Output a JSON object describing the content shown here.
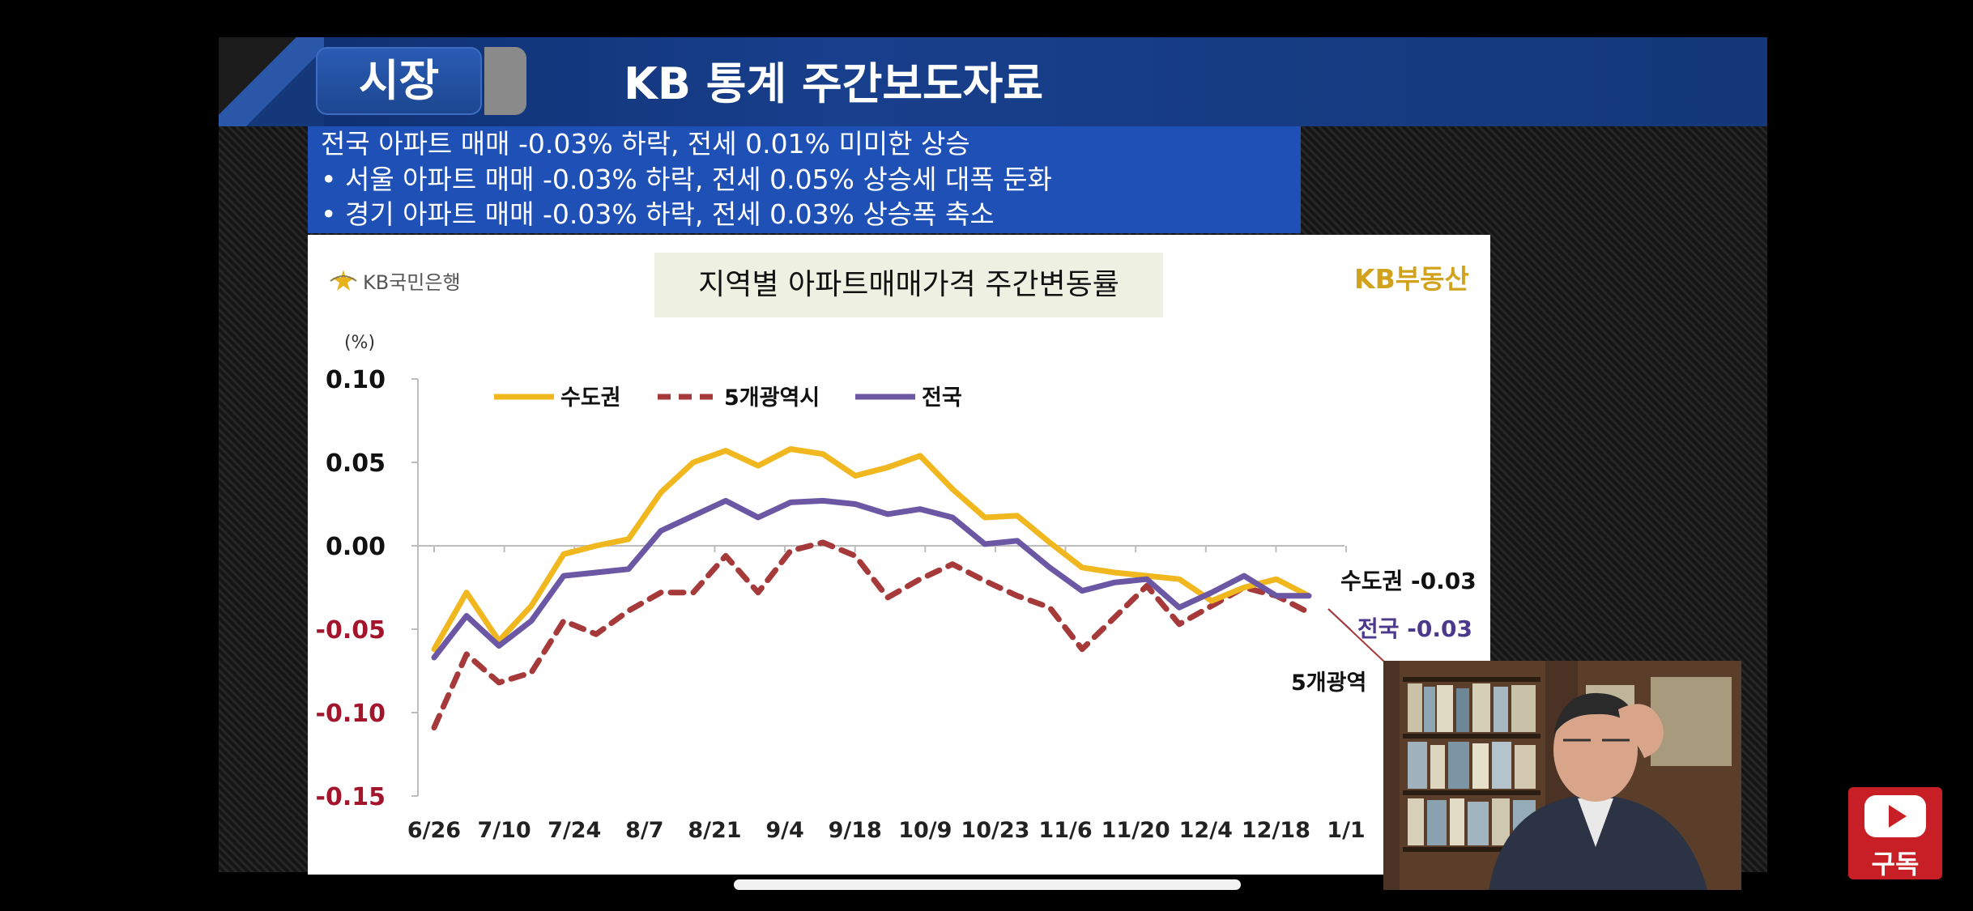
{
  "header": {
    "tab_label": "시장",
    "title": "KB 통계  주간보도자료"
  },
  "summary": {
    "lines": [
      "전국 아파트 매매 -0.03% 하락, 전세 0.01% 미미한 상승",
      "• 서울 아파트 매매 -0.03% 하락, 전세 0.05% 상승세 대폭 둔화",
      "• 경기 아파트 매매 -0.03% 하락, 전세 0.03% 상승폭 축소"
    ]
  },
  "logos": {
    "left_text": "KB국민은행",
    "left_icon": "kb-star-icon",
    "right_text": "KB부동산"
  },
  "subscribe": {
    "label": "구독",
    "icon": "youtube-play-icon"
  },
  "colors": {
    "capital": "#f0b71e",
    "metro5": "#a63a3a",
    "national": "#6b57a3",
    "header_blue": "#143879",
    "summary_blue": "#1f50b5"
  },
  "chart_data": {
    "type": "line",
    "title": "지역별 아파트매매가격 주간변동률",
    "unit_label": "(%)",
    "ylim": [
      -0.15,
      0.1
    ],
    "yticks": [
      "0.10",
      "0.05",
      "0.00",
      "-0.05",
      "-0.10",
      "-0.15"
    ],
    "x_tick_labels": [
      "6/26",
      "7/10",
      "7/24",
      "8/7",
      "8/21",
      "9/4",
      "9/18",
      "10/9",
      "10/23",
      "11/6",
      "11/20",
      "12/4",
      "12/18",
      "1/1"
    ],
    "legend": {
      "position": "top-left"
    },
    "series": [
      {
        "name": "수도권",
        "color": "#f0b71e",
        "style": "solid",
        "values": [
          -0.062,
          -0.028,
          -0.057,
          -0.036,
          -0.005,
          0.0,
          0.004,
          0.032,
          0.05,
          0.057,
          0.048,
          0.058,
          0.055,
          0.042,
          0.047,
          0.054,
          0.034,
          0.017,
          0.018,
          0.002,
          -0.013,
          -0.016,
          -0.018,
          -0.02,
          -0.033,
          -0.025,
          -0.02,
          -0.03
        ]
      },
      {
        "name": "5개광역시",
        "color": "#a63a3a",
        "style": "dashed",
        "values": [
          -0.109,
          -0.065,
          -0.082,
          -0.076,
          -0.045,
          -0.053,
          -0.039,
          -0.028,
          -0.028,
          -0.006,
          -0.028,
          -0.003,
          0.002,
          -0.006,
          -0.031,
          -0.02,
          -0.011,
          -0.021,
          -0.03,
          -0.037,
          -0.062,
          -0.043,
          -0.024,
          -0.047,
          -0.036,
          -0.025,
          -0.03,
          -0.04
        ]
      },
      {
        "name": "전국",
        "color": "#6b57a3",
        "style": "solid",
        "values": [
          -0.067,
          -0.042,
          -0.06,
          -0.045,
          -0.018,
          -0.016,
          -0.014,
          0.009,
          0.018,
          0.027,
          0.017,
          0.026,
          0.027,
          0.025,
          0.019,
          0.022,
          0.017,
          0.001,
          0.003,
          -0.013,
          -0.027,
          -0.022,
          -0.02,
          -0.037,
          -0.028,
          -0.018,
          -0.03,
          -0.03
        ]
      }
    ],
    "end_labels": [
      {
        "text": "수도권 -0.03",
        "series": "수도권"
      },
      {
        "text": "전국 -0.03",
        "series": "전국"
      },
      {
        "text": "5개광역",
        "series": "5개광역시"
      }
    ]
  }
}
